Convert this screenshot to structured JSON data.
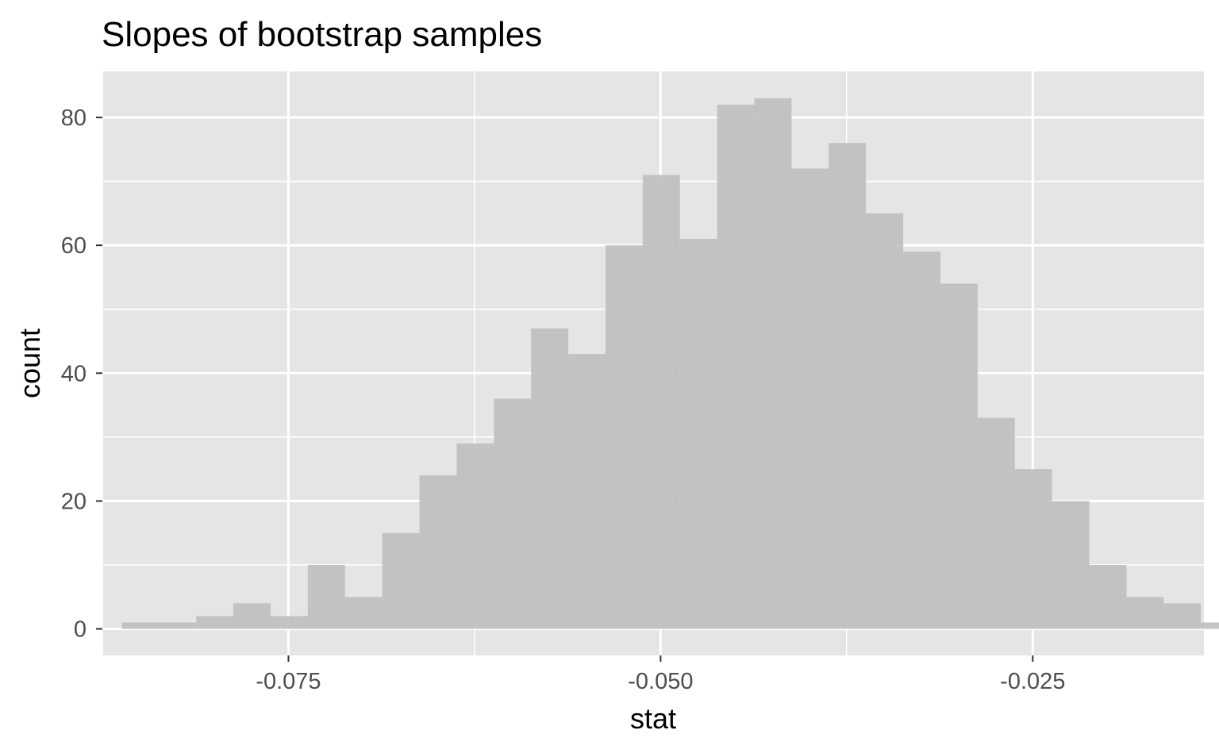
{
  "chart_data": {
    "type": "bar",
    "title": "Slopes of bootstrap samples",
    "xlabel": "stat",
    "ylabel": "count",
    "xlim": [
      -0.0875,
      -0.0135
    ],
    "ylim": [
      -4.15,
      87.2
    ],
    "x_ticks": [
      {
        "value": -0.075,
        "label": "-0.075"
      },
      {
        "value": -0.05,
        "label": "-0.050"
      },
      {
        "value": -0.025,
        "label": "-0.025"
      }
    ],
    "x_minor_breaks": [
      -0.0875,
      -0.0625,
      -0.0375,
      -0.0125
    ],
    "y_ticks": [
      {
        "value": 0,
        "label": "0"
      },
      {
        "value": 20,
        "label": "20"
      },
      {
        "value": 40,
        "label": "40"
      },
      {
        "value": 60,
        "label": "60"
      },
      {
        "value": 80,
        "label": "80"
      }
    ],
    "y_minor_breaks": [
      10,
      30,
      50,
      70
    ],
    "grid": true,
    "colors": {
      "panel_background": "#e5e5e5",
      "grid": "#ffffff",
      "bar_fill": "#bebebe"
    },
    "bins": {
      "start": -0.0862,
      "width": 0.0025,
      "counts": [
        1,
        1,
        2,
        4,
        2,
        10,
        5,
        15,
        24,
        29,
        36,
        47,
        43,
        60,
        71,
        61,
        82,
        83,
        72,
        76,
        65,
        59,
        54,
        33,
        25,
        20,
        10,
        5,
        4,
        1
      ]
    }
  }
}
